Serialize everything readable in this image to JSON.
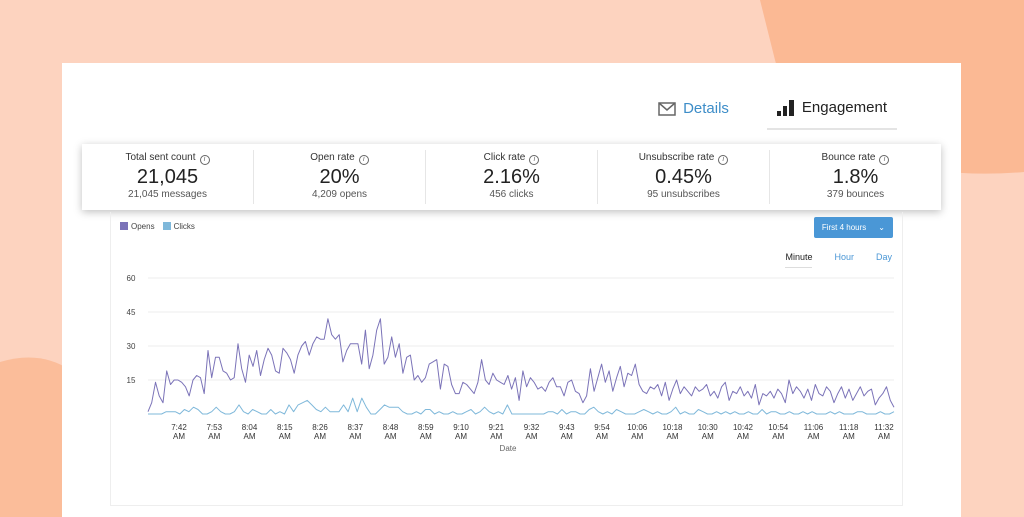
{
  "tabs": [
    {
      "label": "Details",
      "icon": "envelope-icon"
    },
    {
      "label": "Engagement",
      "icon": "bar-chart-icon",
      "active": true
    }
  ],
  "stats": [
    {
      "label": "Total sent count",
      "value": "21,045",
      "sub": "21,045 messages"
    },
    {
      "label": "Open rate",
      "value": "20%",
      "sub": "4,209 opens"
    },
    {
      "label": "Click rate",
      "value": "2.16%",
      "sub": "456 clicks"
    },
    {
      "label": "Unsubscribe rate",
      "value": "0.45%",
      "sub": "95 unsubscribes"
    },
    {
      "label": "Bounce rate",
      "value": "1.8%",
      "sub": "379 bounces"
    }
  ],
  "info_glyph": "i",
  "range_select": {
    "value": "First 4 hours"
  },
  "granularity": [
    "Minute",
    "Hour",
    "Day"
  ],
  "colors": {
    "opens": "#7b73b8",
    "clicks": "#7fb8da",
    "accent": "#4a97d6"
  },
  "chart_data": {
    "type": "line",
    "xlabel": "Date",
    "ylabel": "",
    "ylim": [
      0,
      60
    ],
    "yticks": [
      15,
      30,
      45,
      60
    ],
    "grid": true,
    "xticks": [
      "7:42 AM",
      "7:53 AM",
      "8:04 AM",
      "8:15 AM",
      "8:26 AM",
      "8:37 AM",
      "8:48 AM",
      "8:59 AM",
      "9:10 AM",
      "9:21 AM",
      "9:32 AM",
      "9:43 AM",
      "9:54 AM",
      "10:06 AM",
      "10:18 AM",
      "10:30 AM",
      "10:42 AM",
      "10:54 AM",
      "11:06 AM",
      "11:18 AM",
      "11:32 AM"
    ],
    "legend": "top-left",
    "series": [
      {
        "name": "Opens",
        "values": [
          1,
          5,
          14,
          8,
          5,
          19,
          13,
          15,
          15,
          14,
          12,
          8,
          15,
          17,
          16,
          9,
          28,
          16,
          25,
          25,
          19,
          18,
          15,
          16,
          31,
          20,
          14,
          26,
          21,
          28,
          17,
          24,
          29,
          26,
          19,
          18,
          29,
          27,
          24,
          18,
          26,
          30,
          32,
          26,
          31,
          34,
          33,
          33,
          42,
          35,
          33,
          35,
          23,
          28,
          31,
          31,
          31,
          22,
          37,
          20,
          26,
          37,
          42,
          22,
          25,
          34,
          25,
          31,
          18,
          25,
          26,
          15,
          17,
          14,
          16,
          22,
          23,
          24,
          11,
          22,
          21,
          13,
          9,
          9,
          14,
          13,
          11,
          9,
          14,
          24,
          15,
          13,
          18,
          15,
          14,
          13,
          17,
          11,
          16,
          6,
          19,
          12,
          16,
          14,
          11,
          12,
          10,
          14,
          16,
          12,
          12,
          8,
          14,
          15,
          10,
          9,
          5,
          8,
          20,
          10,
          16,
          22,
          14,
          19,
          10,
          16,
          21,
          12,
          18,
          17,
          22,
          13,
          10,
          9,
          12,
          11,
          13,
          8,
          14,
          6,
          11,
          15,
          9,
          12,
          10,
          8,
          12,
          10,
          11,
          13,
          8,
          10,
          7,
          12,
          14,
          6,
          10,
          9,
          12,
          8,
          10,
          7,
          13,
          4,
          9,
          8,
          10,
          7,
          11,
          9,
          5,
          15,
          9,
          12,
          10,
          7,
          11,
          6,
          13,
          9,
          8,
          12,
          10,
          5,
          9,
          12,
          7,
          11,
          6,
          9,
          12,
          8,
          10,
          11,
          4,
          7,
          9,
          12,
          6,
          3
        ]
      },
      {
        "name": "Clicks",
        "values": [
          0,
          0,
          0,
          0,
          1,
          1,
          1,
          0,
          2,
          1,
          3,
          2,
          0,
          0,
          1,
          3,
          1,
          0,
          0,
          1,
          4,
          1,
          0,
          2,
          1,
          0,
          0,
          2,
          0,
          1,
          0,
          4,
          1,
          4,
          5,
          6,
          4,
          2,
          1,
          3,
          1,
          1,
          1,
          4,
          1,
          7,
          1,
          7,
          3,
          0,
          0,
          2,
          4,
          3,
          3,
          3,
          1,
          0,
          0,
          1,
          0,
          2,
          2,
          0,
          1,
          0,
          0,
          1,
          0,
          0,
          1,
          2,
          0,
          1,
          3,
          1,
          0,
          1,
          0,
          4,
          0,
          0,
          0,
          0,
          0,
          0,
          0,
          0,
          1,
          1,
          0,
          2,
          0,
          1,
          1,
          0,
          0,
          2,
          3,
          1,
          0,
          1,
          0,
          2,
          1,
          0,
          0,
          0,
          1,
          2,
          1,
          0,
          1,
          0,
          0,
          1,
          3,
          0,
          1,
          0,
          0,
          2,
          1,
          0,
          0,
          1,
          0,
          1,
          0,
          1,
          0,
          0,
          1,
          0,
          0,
          2,
          0,
          1,
          1,
          0,
          0,
          1,
          0,
          0,
          1,
          0,
          1,
          0,
          0,
          0,
          1,
          0,
          1,
          0,
          0,
          0,
          1,
          1,
          0,
          0,
          0,
          1,
          0,
          0,
          1
        ]
      }
    ]
  }
}
